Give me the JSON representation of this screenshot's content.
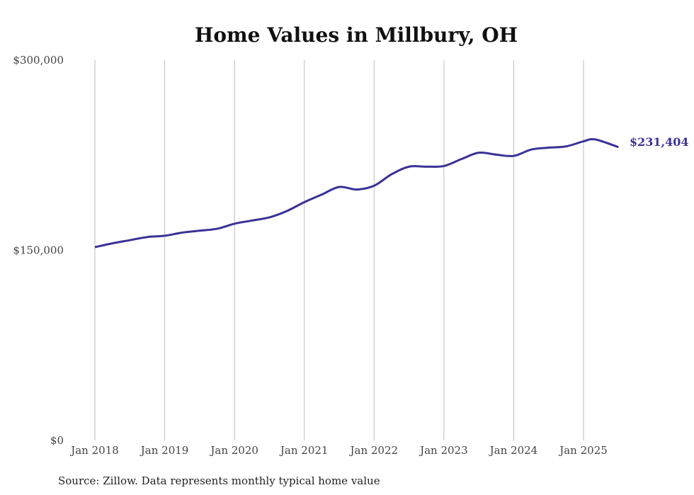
{
  "chart_data": {
    "type": "line",
    "title": "Home Values in Millbury, OH",
    "xlabel": "",
    "ylabel": "",
    "x_ticks": [
      "Jan 2018",
      "Jan 2019",
      "Jan 2020",
      "Jan 2021",
      "Jan 2022",
      "Jan 2023",
      "Jan 2024",
      "Jan 2025"
    ],
    "y_ticks": [
      "$0",
      "$150,000",
      "$300,000"
    ],
    "y_tick_values": [
      0,
      150000,
      300000
    ],
    "ylim": [
      0,
      300000
    ],
    "x_unit": "months since Jan 2018",
    "xlim": [
      0,
      90
    ],
    "grid": "vertical",
    "series": [
      {
        "name": "Typical home value",
        "color": "#3a3296",
        "x": [
          0,
          3,
          6,
          9,
          12,
          15,
          18,
          21,
          24,
          27,
          30,
          33,
          36,
          39,
          42,
          45,
          48,
          51,
          54,
          57,
          60,
          63,
          66,
          69,
          72,
          75,
          78,
          81,
          84,
          86,
          90
        ],
        "values": [
          152500,
          155500,
          158000,
          160500,
          161500,
          164000,
          165500,
          167000,
          171000,
          173500,
          176000,
          181000,
          188000,
          194000,
          200000,
          198000,
          201000,
          210000,
          216000,
          216000,
          216500,
          222000,
          227000,
          225500,
          224500,
          229500,
          231000,
          232000,
          236000,
          237500,
          231404
        ]
      }
    ],
    "end_label": "$231,404",
    "source": "Source: Zillow. Data represents monthly typical home value"
  }
}
